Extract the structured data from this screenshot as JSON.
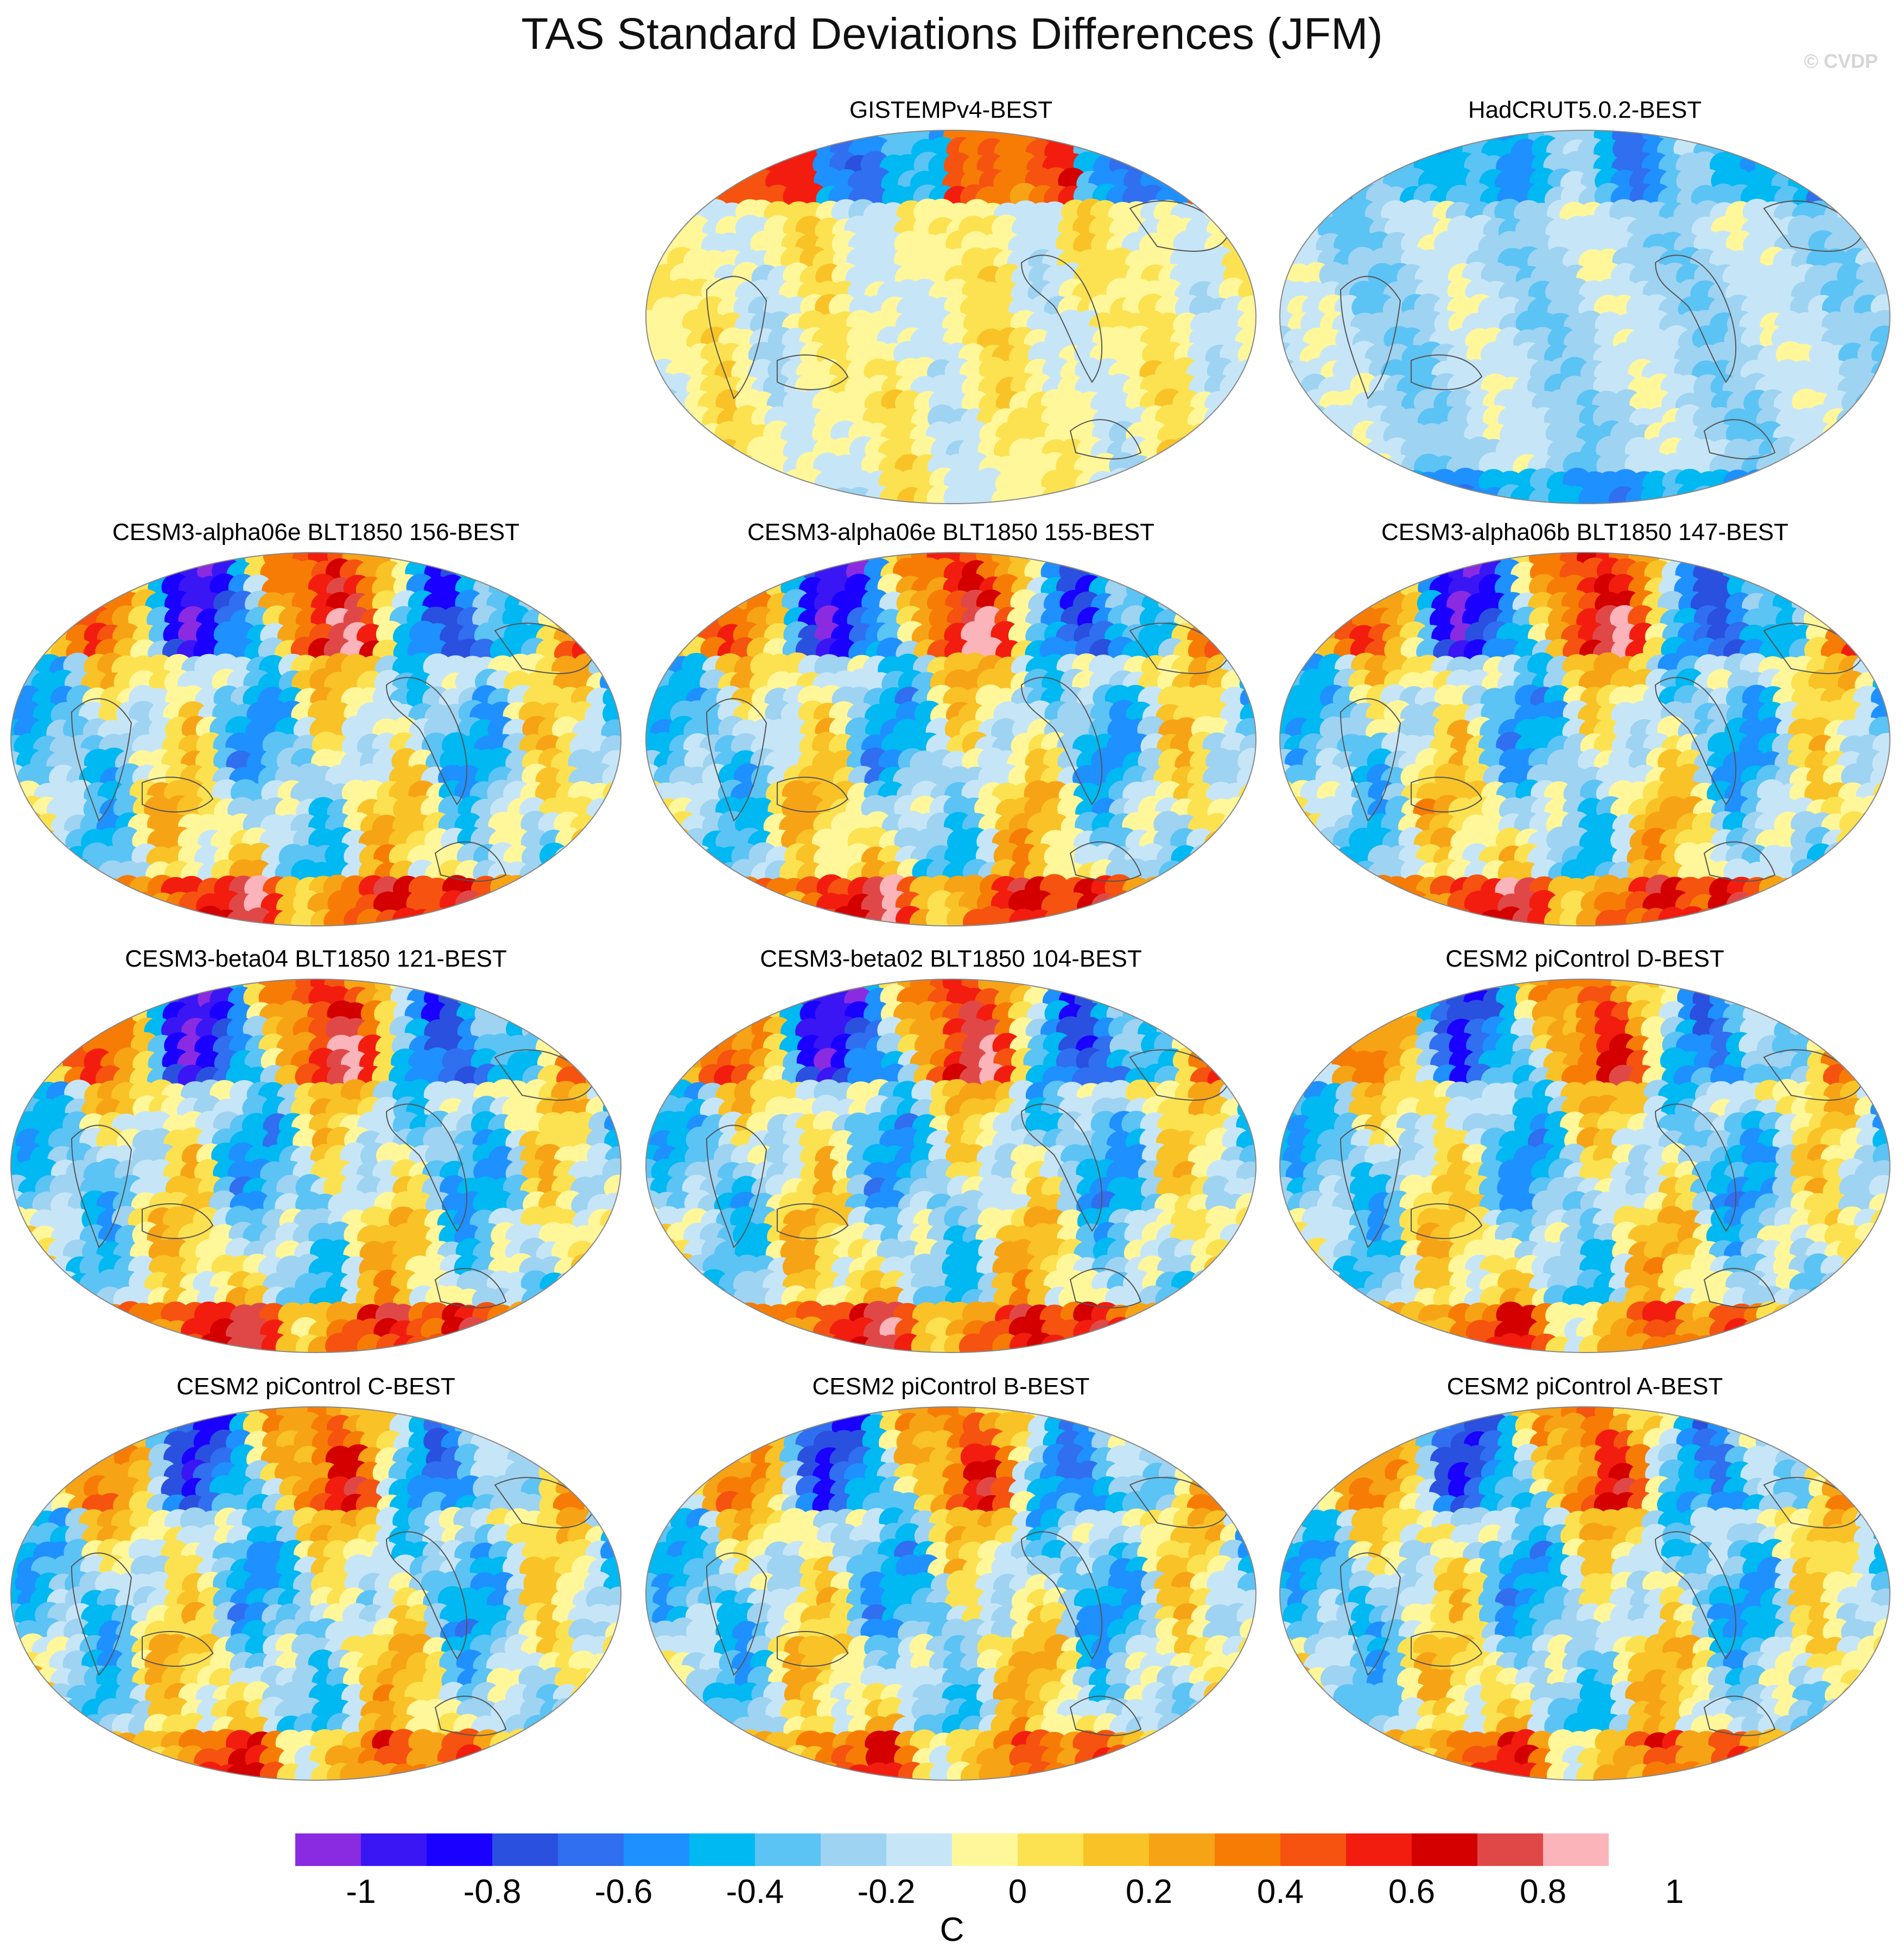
{
  "title": "TAS Standard Deviations Differences (JFM)",
  "credit": "© CVDP",
  "panels": [
    {
      "label": "GISTEMPv4-BEST",
      "regime": "obs_warm"
    },
    {
      "label": "HadCRUT5.0.2-BEST",
      "regime": "obs_cool"
    },
    {
      "label": "CESM3-alpha06e BLT1850 156-BEST",
      "regime": "model_strong"
    },
    {
      "label": "CESM3-alpha06e BLT1850 155-BEST",
      "regime": "model_strong"
    },
    {
      "label": "CESM3-alpha06b BLT1850 147-BEST",
      "regime": "model_strong"
    },
    {
      "label": "CESM3-beta04 BLT1850 121-BEST",
      "regime": "model_strong"
    },
    {
      "label": "CESM3-beta02 BLT1850 104-BEST",
      "regime": "model_strong"
    },
    {
      "label": "CESM2 piControl D-BEST",
      "regime": "model_moderate"
    },
    {
      "label": "CESM2 piControl C-BEST",
      "regime": "model_moderate"
    },
    {
      "label": "CESM2 piControl B-BEST",
      "regime": "model_moderate"
    },
    {
      "label": "CESM2 piControl A-BEST",
      "regime": "model_moderate"
    }
  ],
  "colorbar": {
    "colors": [
      "#8a2be2",
      "#3a16f5",
      "#1a00ff",
      "#2a50e0",
      "#2f6ff0",
      "#1e90ff",
      "#00b8f2",
      "#5cc3f5",
      "#9fd3f2",
      "#c6e6f8",
      "#fff79a",
      "#fce251",
      "#f9c227",
      "#f7a316",
      "#f77c06",
      "#f5530f",
      "#f21d0f",
      "#d40000",
      "#e04848",
      "#fbb4b9"
    ],
    "tick_labels": [
      "-1",
      "-0.8",
      "-0.6",
      "-0.4",
      "-0.2",
      "0",
      "0.2",
      "0.4",
      "0.6",
      "0.8",
      "1"
    ],
    "units": "C"
  }
}
